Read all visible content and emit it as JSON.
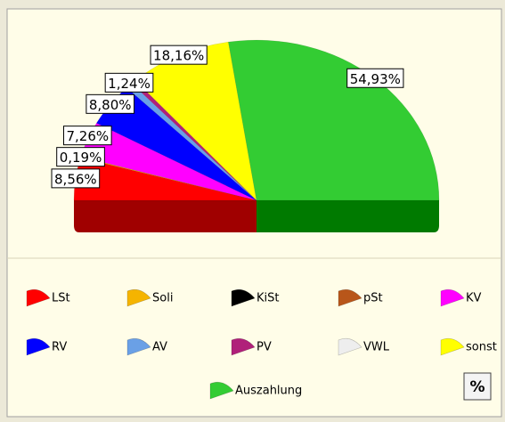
{
  "chart_data": {
    "type": "pie",
    "half": true,
    "categories": [
      "LSt",
      "Soli",
      "KiSt",
      "pSt",
      "KV",
      "RV",
      "AV",
      "PV",
      "VWL",
      "sonst",
      "Auszahlung"
    ],
    "values": [
      8.56,
      0.19,
      0,
      0,
      7.26,
      8.8,
      1.24,
      0.86,
      0,
      18.16,
      54.93
    ],
    "value_labels": [
      "8,56%",
      "0,19%",
      null,
      null,
      "7,26%",
      "8,80%",
      "1,24%",
      null,
      null,
      "18,16%",
      "54,93%"
    ],
    "colors": [
      "#ff0000",
      "#f5b400",
      "#000000",
      "#b8561a",
      "#ff00ff",
      "#0000ff",
      "#6aa0e6",
      "#b0207a",
      "#eeeeee",
      "#ffff00",
      "#33cc33"
    ],
    "side_colors": [
      "#a00000",
      "#007a00"
    ]
  },
  "percent_button": "%"
}
